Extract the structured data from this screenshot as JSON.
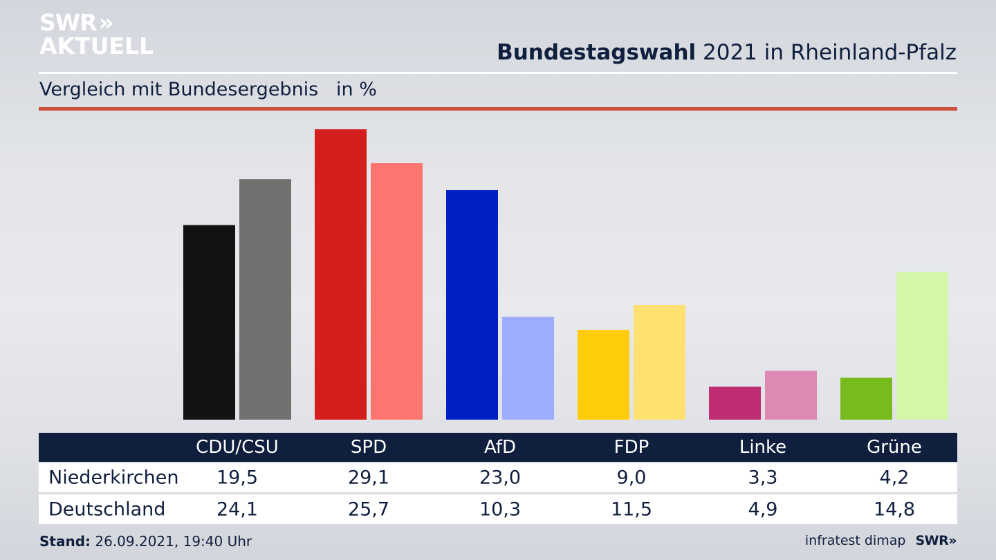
{
  "branding": {
    "logo_line1": "SWR",
    "logo_chevrons": "»",
    "logo_line2": "AKTUELL",
    "source": "infratest dimap",
    "footer_logo": "SWR»"
  },
  "header": {
    "title_bold": "Bundestagswahl",
    "title_rest": " 2021 in Rheinland-Pfalz",
    "subtitle": "Vergleich mit Bundesergebnis   in %"
  },
  "footer": {
    "stand_label": "Stand:",
    "stand_value": " 26.09.2021, 19:40 Uhr"
  },
  "table": {
    "rows": [
      {
        "label": "Niederkirchen",
        "values": [
          "19,5",
          "29,1",
          "23,0",
          "9,0",
          "3,3",
          "4,2"
        ]
      },
      {
        "label": "Deutschland",
        "values": [
          "24,1",
          "25,7",
          "10,3",
          "11,5",
          "4,9",
          "14,8"
        ]
      }
    ]
  },
  "chart_data": {
    "type": "bar",
    "title": "Bundestagswahl 2021 in Rheinland-Pfalz",
    "subtitle": "Vergleich mit Bundesergebnis in %",
    "xlabel": "",
    "ylabel": "in %",
    "ylim": [
      0,
      29.1
    ],
    "grid": false,
    "categories": [
      "CDU/CSU",
      "SPD",
      "AfD",
      "FDP",
      "Linke",
      "Grüne"
    ],
    "series": [
      {
        "name": "Niederkirchen",
        "values": [
          19.5,
          29.1,
          23.0,
          9.0,
          3.3,
          4.2
        ],
        "colors": [
          "#121212",
          "#d41e1e",
          "#0020c4",
          "#ffcc0a",
          "#bf2e72",
          "#78bb1e"
        ]
      },
      {
        "name": "Deutschland",
        "values": [
          24.1,
          25.7,
          10.3,
          11.5,
          4.9,
          14.8
        ],
        "colors": [
          "#73716f",
          "#ff7570",
          "#9dacfd",
          "#ffe070",
          "#de88b4",
          "#d5f5a8"
        ]
      }
    ]
  }
}
